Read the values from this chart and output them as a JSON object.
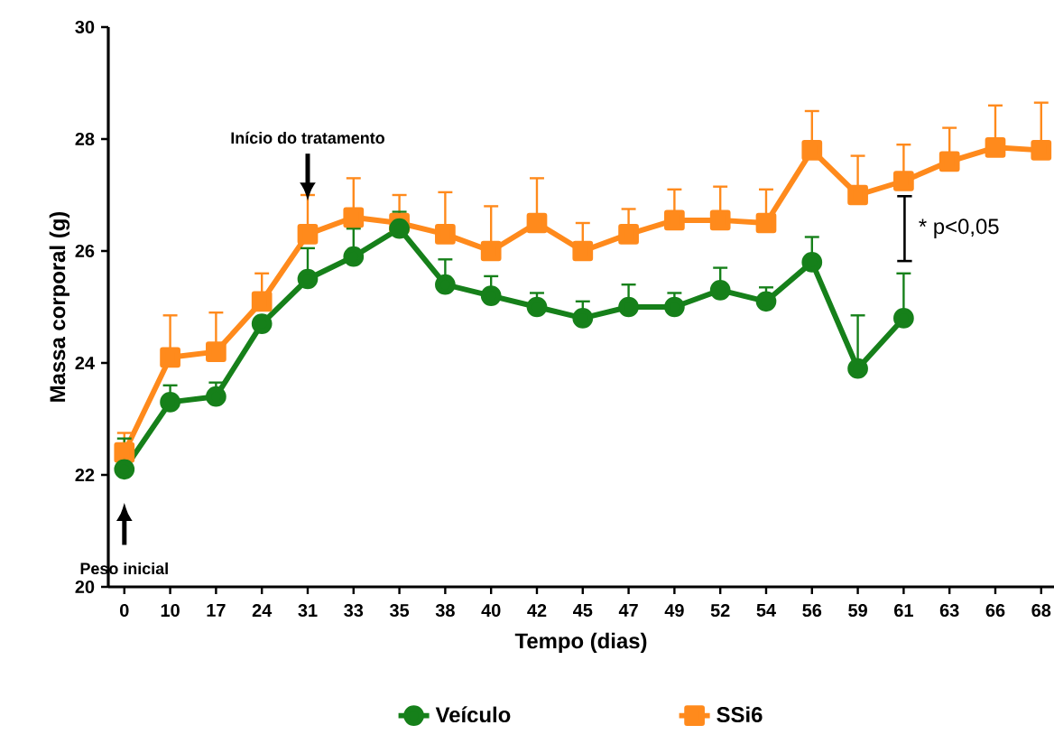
{
  "chart_data": {
    "type": "line",
    "xlabel": "Tempo (dias)",
    "ylabel": "Massa corporal (g)",
    "categories": [
      "0",
      "10",
      "17",
      "24",
      "31",
      "33",
      "35",
      "38",
      "40",
      "42",
      "45",
      "47",
      "49",
      "52",
      "54",
      "56",
      "59",
      "61",
      "63",
      "66",
      "68"
    ],
    "ylim": [
      20,
      30
    ],
    "yticks": [
      20,
      22,
      24,
      26,
      28,
      30
    ],
    "series": [
      {
        "name": "Veículo",
        "color": "#16801a",
        "marker": "circle",
        "values": [
          22.1,
          23.3,
          23.4,
          24.7,
          25.5,
          25.9,
          26.4,
          25.4,
          25.2,
          25.0,
          24.8,
          25.0,
          25.0,
          25.3,
          25.1,
          25.8,
          23.9,
          24.8,
          null,
          null,
          null
        ],
        "errors": [
          [
            22.1,
            22.65
          ],
          [
            23.3,
            23.6
          ],
          [
            23.4,
            23.65
          ],
          null,
          [
            25.5,
            26.05
          ],
          [
            25.9,
            26.4
          ],
          [
            26.4,
            26.7
          ],
          [
            25.4,
            25.85
          ],
          [
            25.2,
            25.55
          ],
          [
            25.0,
            25.25
          ],
          [
            24.8,
            25.1
          ],
          [
            25.0,
            25.4
          ],
          [
            25.0,
            25.25
          ],
          [
            25.3,
            25.7
          ],
          [
            25.1,
            25.35
          ],
          [
            25.8,
            26.25
          ],
          [
            23.9,
            24.85
          ],
          [
            24.8,
            25.6
          ],
          null,
          null,
          null
        ]
      },
      {
        "name": "SSi6",
        "color": "#ff8a1c",
        "marker": "square",
        "values": [
          22.4,
          24.1,
          24.2,
          25.1,
          26.3,
          26.6,
          26.5,
          26.3,
          26.0,
          26.5,
          26.0,
          26.3,
          26.55,
          26.55,
          26.5,
          27.8,
          27.0,
          27.25,
          27.6,
          27.85,
          27.8
        ],
        "errors": [
          [
            22.4,
            22.75
          ],
          [
            24.1,
            24.85
          ],
          [
            24.2,
            24.9
          ],
          [
            25.1,
            25.6
          ],
          [
            26.3,
            27.0
          ],
          [
            26.6,
            27.3
          ],
          [
            26.5,
            27.0
          ],
          [
            26.3,
            27.05
          ],
          [
            26.0,
            26.8
          ],
          [
            26.5,
            27.3
          ],
          [
            26.0,
            26.5
          ],
          [
            26.3,
            26.75
          ],
          [
            26.55,
            27.1
          ],
          [
            26.55,
            27.15
          ],
          [
            26.5,
            27.1
          ],
          [
            27.8,
            28.5
          ],
          [
            27.0,
            27.7
          ],
          [
            27.25,
            27.9
          ],
          [
            27.6,
            28.2
          ],
          [
            27.85,
            28.6
          ],
          [
            27.8,
            28.65
          ]
        ]
      }
    ],
    "annotations": [
      {
        "text": "Início do tratamento",
        "x": "31",
        "y": 26.9
      },
      "Peso inicial",
      "* p<0,05"
    ],
    "grid": false,
    "legend": "bottom",
    "line_style": "solid"
  }
}
